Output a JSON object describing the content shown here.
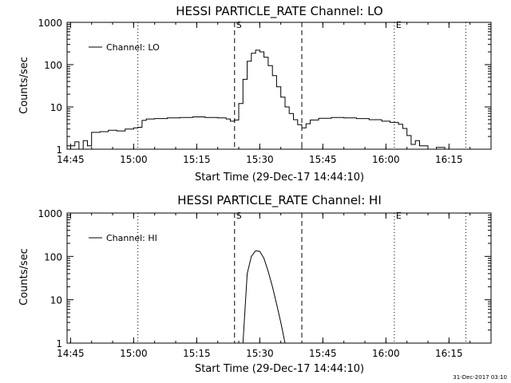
{
  "footer": {
    "timestamp": "31-Dec-2017 03:10"
  },
  "chart_data": [
    {
      "type": "line",
      "title": "HESSI PARTICLE_RATE Channel: LO",
      "xlabel": "Start Time (29-Dec-17 14:44:10)",
      "ylabel": "Counts/sec",
      "y_scale": "log",
      "ylim": [
        1,
        1000
      ],
      "xlim": [
        "14:44:10",
        "16:25:00"
      ],
      "x_ticks": [
        "14:45",
        "15:00",
        "15:15",
        "15:30",
        "15:45",
        "16:00",
        "16:15"
      ],
      "y_ticks": [
        "1",
        "10",
        "100",
        "1000"
      ],
      "legend": {
        "position": "top-left",
        "entries": [
          "Channel: LO"
        ]
      },
      "markers": [
        {
          "label": "S",
          "time": "15:24",
          "style": "dashed"
        },
        {
          "label": "",
          "time": "15:40",
          "style": "dashed"
        },
        {
          "label": "",
          "time": "15:01",
          "style": "dotted"
        },
        {
          "label": "E",
          "time": "16:02",
          "style": "dotted"
        },
        {
          "label": "",
          "time": "16:19",
          "style": "dotted"
        }
      ],
      "series": [
        {
          "name": "Channel: LO",
          "x": [
            "14:44:10",
            "14:46",
            "14:47",
            "14:48",
            "14:49",
            "14:50",
            "14:52",
            "14:54",
            "14:56",
            "14:58",
            "15:00",
            "15:01",
            "15:02",
            "15:03",
            "15:05",
            "15:08",
            "15:11",
            "15:14",
            "15:17",
            "15:20",
            "15:22",
            "15:23",
            "15:24",
            "15:25",
            "15:26",
            "15:27",
            "15:28",
            "15:29",
            "15:30",
            "15:31",
            "15:32",
            "15:33",
            "15:34",
            "15:35",
            "15:36",
            "15:37",
            "15:38",
            "15:39",
            "15:40",
            "15:41",
            "15:42",
            "15:44",
            "15:47",
            "15:50",
            "15:53",
            "15:56",
            "15:59",
            "16:01",
            "16:03",
            "16:04",
            "16:05",
            "16:06",
            "16:07",
            "16:08",
            "16:10",
            "16:12",
            "16:14"
          ],
          "values": [
            1.2,
            1.5,
            1.0,
            1.6,
            1.2,
            2.5,
            2.6,
            2.8,
            2.7,
            3.0,
            3.2,
            3.3,
            4.8,
            5.2,
            5.3,
            5.5,
            5.6,
            5.8,
            5.6,
            5.5,
            5.2,
            4.6,
            4.9,
            12,
            45,
            120,
            185,
            220,
            200,
            150,
            95,
            55,
            30,
            17,
            10,
            7,
            5,
            3.8,
            3.2,
            4.0,
            4.9,
            5.4,
            5.6,
            5.5,
            5.3,
            5.0,
            4.6,
            4.3,
            3.9,
            3.1,
            2.1,
            1.3,
            1.6,
            1.2,
            1.0,
            1.1,
            1.0
          ]
        }
      ]
    },
    {
      "type": "line",
      "title": "HESSI PARTICLE_RATE Channel: HI",
      "xlabel": "Start Time (29-Dec-17 14:44:10)",
      "ylabel": "Counts/sec",
      "y_scale": "log",
      "ylim": [
        1,
        1000
      ],
      "xlim": [
        "14:44:10",
        "16:25:00"
      ],
      "x_ticks": [
        "14:45",
        "15:00",
        "15:15",
        "15:30",
        "15:45",
        "16:00",
        "16:15"
      ],
      "y_ticks": [
        "1",
        "10",
        "100",
        "1000"
      ],
      "legend": {
        "position": "top-left",
        "entries": [
          "Channel: HI"
        ]
      },
      "markers": [
        {
          "label": "S",
          "time": "15:24",
          "style": "dashed"
        },
        {
          "label": "",
          "time": "15:40",
          "style": "dashed"
        },
        {
          "label": "",
          "time": "15:01",
          "style": "dotted"
        },
        {
          "label": "E",
          "time": "16:02",
          "style": "dotted"
        },
        {
          "label": "",
          "time": "16:19",
          "style": "dotted"
        }
      ],
      "series": [
        {
          "name": "Channel: HI",
          "x": [
            "15:26",
            "15:27",
            "15:28",
            "15:29",
            "15:30",
            "15:31",
            "15:32",
            "15:33",
            "15:34",
            "15:35",
            "15:36"
          ],
          "values": [
            1.0,
            40,
            100,
            135,
            130,
            90,
            45,
            20,
            8,
            3,
            1.0
          ]
        }
      ]
    }
  ]
}
